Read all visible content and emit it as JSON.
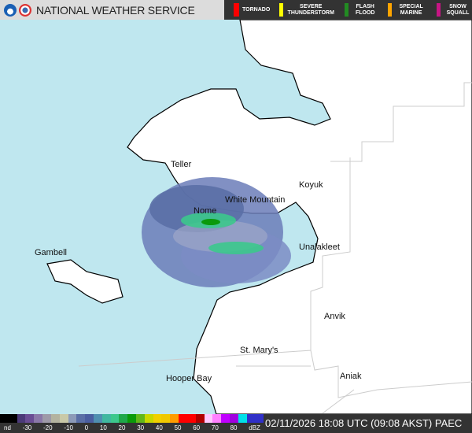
{
  "header": {
    "title": "NATIONAL WEATHER SERVICE",
    "logos": [
      "noaa-logo",
      "nws-logo"
    ],
    "warnings": [
      {
        "label": "TORNADO",
        "color": "#ff0000"
      },
      {
        "label": "SEVERE THUNDERSTORM",
        "color": "#ffff00"
      },
      {
        "label": "FLASH FLOOD",
        "color": "#228b22"
      },
      {
        "label": "SPECIAL MARINE",
        "color": "#ffa500"
      },
      {
        "label": "SNOW SQUALL",
        "color": "#c71585"
      }
    ]
  },
  "map": {
    "sea_color": "#bfe7ef",
    "land_color": "#ffffff",
    "cities": [
      {
        "name": "Teller"
      },
      {
        "name": "Koyuk"
      },
      {
        "name": "White Mountain"
      },
      {
        "name": "Nome"
      },
      {
        "name": "Gambell"
      },
      {
        "name": "Unalakleet"
      },
      {
        "name": "Anvik"
      },
      {
        "name": "St. Mary's"
      },
      {
        "name": "Aniak"
      },
      {
        "name": "Hooper Bay"
      }
    ]
  },
  "legend": {
    "unit": "dBZ",
    "ticks": [
      "nd",
      "-30",
      "-20",
      "-10",
      "0",
      "10",
      "20",
      "30",
      "40",
      "50",
      "60",
      "70",
      "80",
      "dBZ"
    ],
    "colors": [
      "#000000",
      "#000000",
      "#4b3a78",
      "#6a4d94",
      "#8a78a8",
      "#9e9aa8",
      "#b3b3a0",
      "#c9c9a8",
      "#8c9ab8",
      "#5a6fa6",
      "#4a5ea0",
      "#4f8fb0",
      "#40b8a0",
      "#3cc88c",
      "#1fa84a",
      "#0a9a0a",
      "#62b81a",
      "#c8d800",
      "#f0d000",
      "#f0c800",
      "#ff9c00",
      "#ff0000",
      "#ff0000",
      "#b00000",
      "#ffc8ff",
      "#ff80ff",
      "#c000ff",
      "#a000e0",
      "#00e0e8",
      "#3030c8",
      "#3030c8"
    ]
  },
  "status": {
    "timestamp": "02/11/2026 18:08 UTC (09:08 AKST)",
    "station": "PAEC"
  }
}
